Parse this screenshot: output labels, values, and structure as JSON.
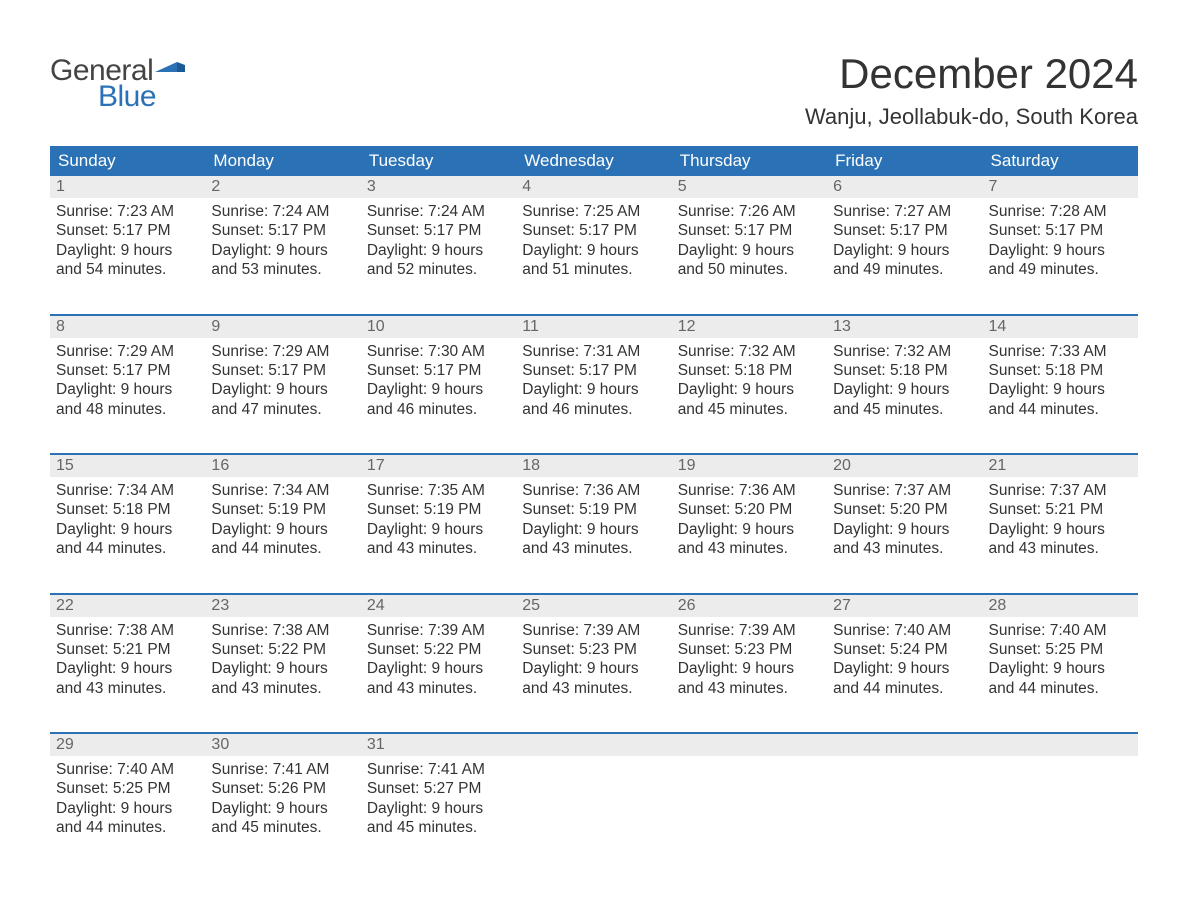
{
  "brand": {
    "general": "General",
    "blue": "Blue",
    "flag_color": "#2a72b5"
  },
  "title": "December 2024",
  "location": "Wanju, Jeollabuk-do, South Korea",
  "colors": {
    "header_bg": "#2a72b5",
    "header_text": "#ffffff",
    "daynum_bg": "#ececec",
    "daynum_text": "#666666",
    "body_text": "#333333",
    "row_border": "#2a72b5",
    "page_bg": "#ffffff"
  },
  "fonts": {
    "title_size_pt": 32,
    "location_size_pt": 17,
    "dayhead_size_pt": 13,
    "body_size_pt": 11.5
  },
  "day_headers": [
    "Sunday",
    "Monday",
    "Tuesday",
    "Wednesday",
    "Thursday",
    "Friday",
    "Saturday"
  ],
  "weeks": [
    [
      {
        "n": "1",
        "sunrise": "7:23 AM",
        "sunset": "5:17 PM",
        "dl1": "Daylight: 9 hours",
        "dl2": "and 54 minutes."
      },
      {
        "n": "2",
        "sunrise": "7:24 AM",
        "sunset": "5:17 PM",
        "dl1": "Daylight: 9 hours",
        "dl2": "and 53 minutes."
      },
      {
        "n": "3",
        "sunrise": "7:24 AM",
        "sunset": "5:17 PM",
        "dl1": "Daylight: 9 hours",
        "dl2": "and 52 minutes."
      },
      {
        "n": "4",
        "sunrise": "7:25 AM",
        "sunset": "5:17 PM",
        "dl1": "Daylight: 9 hours",
        "dl2": "and 51 minutes."
      },
      {
        "n": "5",
        "sunrise": "7:26 AM",
        "sunset": "5:17 PM",
        "dl1": "Daylight: 9 hours",
        "dl2": "and 50 minutes."
      },
      {
        "n": "6",
        "sunrise": "7:27 AM",
        "sunset": "5:17 PM",
        "dl1": "Daylight: 9 hours",
        "dl2": "and 49 minutes."
      },
      {
        "n": "7",
        "sunrise": "7:28 AM",
        "sunset": "5:17 PM",
        "dl1": "Daylight: 9 hours",
        "dl2": "and 49 minutes."
      }
    ],
    [
      {
        "n": "8",
        "sunrise": "7:29 AM",
        "sunset": "5:17 PM",
        "dl1": "Daylight: 9 hours",
        "dl2": "and 48 minutes."
      },
      {
        "n": "9",
        "sunrise": "7:29 AM",
        "sunset": "5:17 PM",
        "dl1": "Daylight: 9 hours",
        "dl2": "and 47 minutes."
      },
      {
        "n": "10",
        "sunrise": "7:30 AM",
        "sunset": "5:17 PM",
        "dl1": "Daylight: 9 hours",
        "dl2": "and 46 minutes."
      },
      {
        "n": "11",
        "sunrise": "7:31 AM",
        "sunset": "5:17 PM",
        "dl1": "Daylight: 9 hours",
        "dl2": "and 46 minutes."
      },
      {
        "n": "12",
        "sunrise": "7:32 AM",
        "sunset": "5:18 PM",
        "dl1": "Daylight: 9 hours",
        "dl2": "and 45 minutes."
      },
      {
        "n": "13",
        "sunrise": "7:32 AM",
        "sunset": "5:18 PM",
        "dl1": "Daylight: 9 hours",
        "dl2": "and 45 minutes."
      },
      {
        "n": "14",
        "sunrise": "7:33 AM",
        "sunset": "5:18 PM",
        "dl1": "Daylight: 9 hours",
        "dl2": "and 44 minutes."
      }
    ],
    [
      {
        "n": "15",
        "sunrise": "7:34 AM",
        "sunset": "5:18 PM",
        "dl1": "Daylight: 9 hours",
        "dl2": "and 44 minutes."
      },
      {
        "n": "16",
        "sunrise": "7:34 AM",
        "sunset": "5:19 PM",
        "dl1": "Daylight: 9 hours",
        "dl2": "and 44 minutes."
      },
      {
        "n": "17",
        "sunrise": "7:35 AM",
        "sunset": "5:19 PM",
        "dl1": "Daylight: 9 hours",
        "dl2": "and 43 minutes."
      },
      {
        "n": "18",
        "sunrise": "7:36 AM",
        "sunset": "5:19 PM",
        "dl1": "Daylight: 9 hours",
        "dl2": "and 43 minutes."
      },
      {
        "n": "19",
        "sunrise": "7:36 AM",
        "sunset": "5:20 PM",
        "dl1": "Daylight: 9 hours",
        "dl2": "and 43 minutes."
      },
      {
        "n": "20",
        "sunrise": "7:37 AM",
        "sunset": "5:20 PM",
        "dl1": "Daylight: 9 hours",
        "dl2": "and 43 minutes."
      },
      {
        "n": "21",
        "sunrise": "7:37 AM",
        "sunset": "5:21 PM",
        "dl1": "Daylight: 9 hours",
        "dl2": "and 43 minutes."
      }
    ],
    [
      {
        "n": "22",
        "sunrise": "7:38 AM",
        "sunset": "5:21 PM",
        "dl1": "Daylight: 9 hours",
        "dl2": "and 43 minutes."
      },
      {
        "n": "23",
        "sunrise": "7:38 AM",
        "sunset": "5:22 PM",
        "dl1": "Daylight: 9 hours",
        "dl2": "and 43 minutes."
      },
      {
        "n": "24",
        "sunrise": "7:39 AM",
        "sunset": "5:22 PM",
        "dl1": "Daylight: 9 hours",
        "dl2": "and 43 minutes."
      },
      {
        "n": "25",
        "sunrise": "7:39 AM",
        "sunset": "5:23 PM",
        "dl1": "Daylight: 9 hours",
        "dl2": "and 43 minutes."
      },
      {
        "n": "26",
        "sunrise": "7:39 AM",
        "sunset": "5:23 PM",
        "dl1": "Daylight: 9 hours",
        "dl2": "and 43 minutes."
      },
      {
        "n": "27",
        "sunrise": "7:40 AM",
        "sunset": "5:24 PM",
        "dl1": "Daylight: 9 hours",
        "dl2": "and 44 minutes."
      },
      {
        "n": "28",
        "sunrise": "7:40 AM",
        "sunset": "5:25 PM",
        "dl1": "Daylight: 9 hours",
        "dl2": "and 44 minutes."
      }
    ],
    [
      {
        "n": "29",
        "sunrise": "7:40 AM",
        "sunset": "5:25 PM",
        "dl1": "Daylight: 9 hours",
        "dl2": "and 44 minutes."
      },
      {
        "n": "30",
        "sunrise": "7:41 AM",
        "sunset": "5:26 PM",
        "dl1": "Daylight: 9 hours",
        "dl2": "and 45 minutes."
      },
      {
        "n": "31",
        "sunrise": "7:41 AM",
        "sunset": "5:27 PM",
        "dl1": "Daylight: 9 hours",
        "dl2": "and 45 minutes."
      },
      null,
      null,
      null,
      null
    ]
  ],
  "labels": {
    "sunrise_prefix": "Sunrise: ",
    "sunset_prefix": "Sunset: "
  }
}
